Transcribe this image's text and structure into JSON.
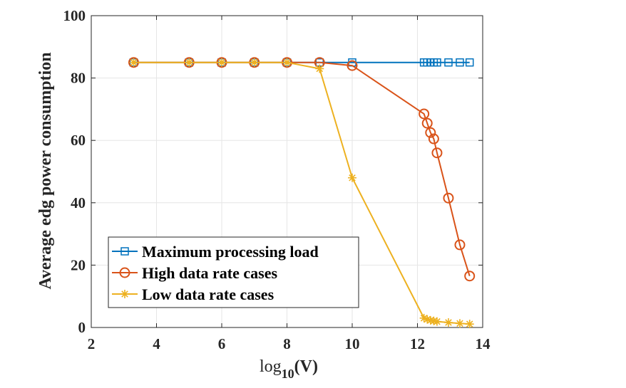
{
  "chart_data": {
    "type": "line",
    "title": "",
    "xlabel_base": "log",
    "xlabel_sub": "10",
    "xlabel_arg": "(V)",
    "ylabel": "Average edg power consumption",
    "xlim": [
      2,
      14
    ],
    "ylim": [
      0,
      100
    ],
    "xticks": [
      "2",
      "4",
      "6",
      "8",
      "10",
      "12",
      "14"
    ],
    "yticks": [
      "0",
      "20",
      "40",
      "60",
      "80",
      "100"
    ],
    "grid": true,
    "legend_position": "lower-left",
    "series": [
      {
        "name": "Maximum processing load",
        "color": "#0072BD",
        "marker": "square",
        "x": [
          3.3,
          5,
          6,
          7,
          8,
          9,
          10,
          12.2,
          12.3,
          12.4,
          12.5,
          12.6,
          12.95,
          13.3,
          13.6
        ],
        "y": [
          85,
          85,
          85,
          85,
          85,
          85,
          85,
          85,
          85,
          85,
          85,
          85,
          85,
          85,
          85
        ]
      },
      {
        "name": "High data rate cases",
        "color": "#D95319",
        "marker": "circle",
        "x": [
          3.3,
          5,
          6,
          7,
          8,
          9,
          10,
          12.2,
          12.3,
          12.4,
          12.5,
          12.6,
          12.95,
          13.3,
          13.6
        ],
        "y": [
          85,
          85,
          85,
          85,
          85,
          85,
          84,
          68.5,
          65.5,
          62.5,
          60.5,
          56,
          41.5,
          26.5,
          16.5
        ]
      },
      {
        "name": "Low data rate cases",
        "color": "#EDB120",
        "marker": "asterisk",
        "x": [
          3.3,
          5,
          6,
          7,
          8,
          9,
          10,
          12.2,
          12.3,
          12.4,
          12.5,
          12.6,
          12.95,
          13.3,
          13.6
        ],
        "y": [
          85,
          85,
          85,
          85,
          85,
          83,
          48,
          3,
          2.6,
          2.3,
          2.1,
          1.9,
          1.6,
          1.3,
          1.1
        ]
      }
    ]
  }
}
